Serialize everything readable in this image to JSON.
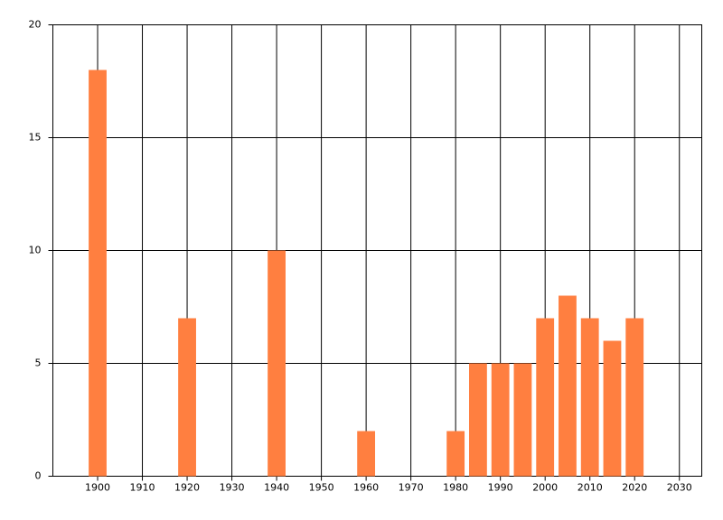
{
  "chart_data": {
    "type": "bar",
    "x": [
      1900,
      1920,
      1940,
      1960,
      1980,
      1985,
      1990,
      1995,
      2000,
      2005,
      2010,
      2015,
      2020
    ],
    "values": [
      18,
      7,
      10,
      2,
      2,
      5,
      5,
      5,
      7,
      8,
      7,
      6,
      7
    ],
    "color": "#ff7f40",
    "xlim": [
      1890,
      2035
    ],
    "xticks": [
      1900,
      1910,
      1920,
      1930,
      1940,
      1950,
      1960,
      1970,
      1980,
      1990,
      2000,
      2010,
      2020,
      2030
    ],
    "ylim": [
      0,
      20
    ],
    "yticks": [
      0,
      5,
      10,
      15,
      20
    ],
    "grid": true
  }
}
